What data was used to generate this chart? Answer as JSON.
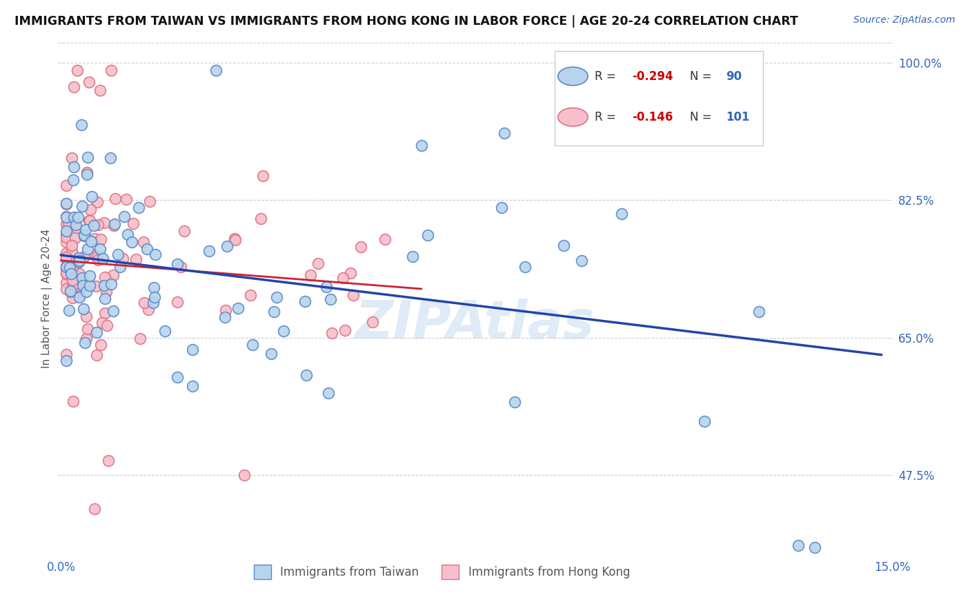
{
  "title": "IMMIGRANTS FROM TAIWAN VS IMMIGRANTS FROM HONG KONG IN LABOR FORCE | AGE 20-24 CORRELATION CHART",
  "source": "Source: ZipAtlas.com",
  "ylabel": "In Labor Force | Age 20-24",
  "x_min": 0.0,
  "x_max": 0.15,
  "y_min": 0.375,
  "y_max": 1.025,
  "y_ticks_right": [
    1.0,
    0.825,
    0.65,
    0.475
  ],
  "y_tick_labels_right": [
    "100.0%",
    "82.5%",
    "65.0%",
    "47.5%"
  ],
  "taiwan_color": "#b8d4ec",
  "taiwan_edge_color": "#5588cc",
  "hk_color": "#f5c0cb",
  "hk_edge_color": "#e07080",
  "trend_taiwan_color": "#2244aa",
  "trend_hk_color": "#cc2233",
  "legend_taiwan_label": "Immigrants from Taiwan",
  "legend_hk_label": "Immigrants from Hong Kong",
  "legend_R_taiwan": "R = -0.294",
  "legend_N_taiwan": "N = 90",
  "legend_R_hk": "R =  -0.146",
  "legend_N_hk": "N = 101",
  "watermark": "ZIPAtlas",
  "tw_trend_x0": 0.0,
  "tw_trend_x1": 0.148,
  "tw_trend_y0": 0.755,
  "tw_trend_y1": 0.628,
  "hk_trend_x0": 0.0,
  "hk_trend_x1": 0.065,
  "hk_trend_y0": 0.748,
  "hk_trend_y1": 0.712
}
